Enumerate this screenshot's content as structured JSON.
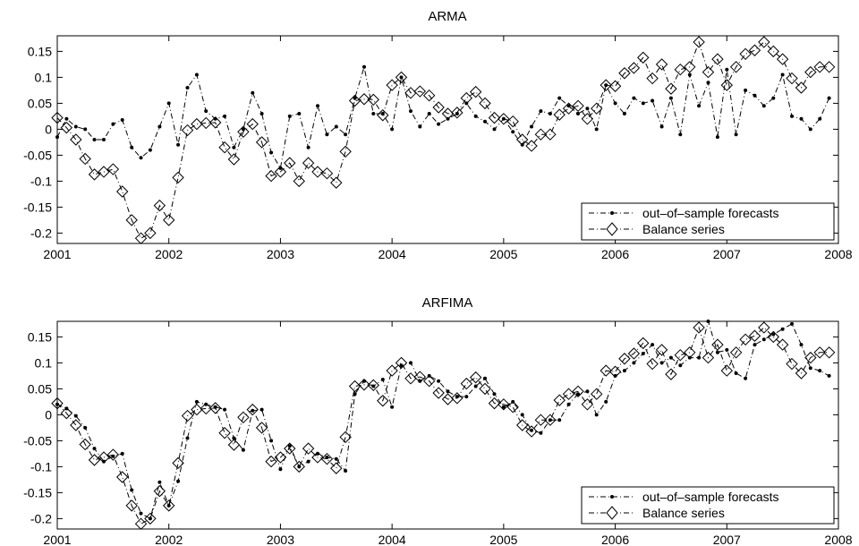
{
  "chart_data": [
    {
      "type": "line",
      "title": "ARMA",
      "xlabel": "",
      "ylabel": "",
      "xlim": [
        2001,
        2008
      ],
      "ylim": [
        -0.22,
        0.18
      ],
      "x_ticks": [
        "2001",
        "2002",
        "2003",
        "2004",
        "2005",
        "2006",
        "2007",
        "2008"
      ],
      "y_ticks": [
        "0.15",
        "0.1",
        "0.05",
        "0",
        "-0.05",
        "-0.1",
        "-0.15",
        "-0.2"
      ],
      "legend_position": "bottom-right",
      "grid": false,
      "series": [
        {
          "name": "out–of–sample forecasts",
          "style": "dot-marker dash-dot",
          "x": [
            2001.0,
            2001.083,
            2001.167,
            2001.25,
            2001.333,
            2001.417,
            2001.5,
            2001.583,
            2001.667,
            2001.75,
            2001.833,
            2001.917,
            2002.0,
            2002.083,
            2002.167,
            2002.25,
            2002.333,
            2002.417,
            2002.5,
            2002.583,
            2002.667,
            2002.75,
            2002.833,
            2002.917,
            2003.0,
            2003.083,
            2003.167,
            2003.25,
            2003.333,
            2003.417,
            2003.5,
            2003.583,
            2003.667,
            2003.75,
            2003.833,
            2003.917,
            2004.0,
            2004.083,
            2004.167,
            2004.25,
            2004.333,
            2004.417,
            2004.5,
            2004.583,
            2004.667,
            2004.75,
            2004.833,
            2004.917,
            2005.0,
            2005.083,
            2005.167,
            2005.25,
            2005.333,
            2005.417,
            2005.5,
            2005.583,
            2005.667,
            2005.75,
            2005.833,
            2005.917,
            2006.0,
            2006.083,
            2006.167,
            2006.25,
            2006.333,
            2006.417,
            2006.5,
            2006.583,
            2006.667,
            2006.75,
            2006.833,
            2006.917,
            2007.0,
            2007.083,
            2007.167,
            2007.25,
            2007.333,
            2007.417,
            2007.5,
            2007.583,
            2007.667,
            2007.75,
            2007.833,
            2007.917
          ],
          "y": [
            -0.015,
            0.02,
            0.005,
            0.0,
            -0.02,
            -0.02,
            0.01,
            0.018,
            -0.035,
            -0.055,
            -0.04,
            0.005,
            0.05,
            -0.03,
            0.08,
            0.105,
            0.035,
            0.02,
            0.025,
            -0.035,
            0.0,
            0.07,
            0.03,
            -0.045,
            -0.075,
            0.025,
            0.03,
            -0.035,
            0.045,
            -0.01,
            0.005,
            -0.01,
            0.06,
            0.12,
            0.03,
            0.03,
            0.0,
            0.1,
            0.035,
            0.005,
            0.03,
            0.01,
            0.02,
            0.03,
            0.05,
            0.025,
            0.015,
            0.0,
            0.02,
            -0.005,
            -0.03,
            0.005,
            0.035,
            0.03,
            0.06,
            0.045,
            0.03,
            0.04,
            0.0,
            0.085,
            0.05,
            0.03,
            0.06,
            0.05,
            0.055,
            0.005,
            0.06,
            -0.01,
            0.105,
            0.045,
            0.09,
            -0.015,
            0.115,
            -0.01,
            0.075,
            0.065,
            0.045,
            0.06,
            0.105,
            0.025,
            0.02,
            0.0,
            0.02,
            0.06
          ]
        },
        {
          "name": "Balance series",
          "style": "diamond-marker dash-dot",
          "x": [
            2001.0,
            2001.083,
            2001.167,
            2001.25,
            2001.333,
            2001.417,
            2001.5,
            2001.583,
            2001.667,
            2001.75,
            2001.833,
            2001.917,
            2002.0,
            2002.083,
            2002.167,
            2002.25,
            2002.333,
            2002.417,
            2002.5,
            2002.583,
            2002.667,
            2002.75,
            2002.833,
            2002.917,
            2003.0,
            2003.083,
            2003.167,
            2003.25,
            2003.333,
            2003.417,
            2003.5,
            2003.583,
            2003.667,
            2003.75,
            2003.833,
            2003.917,
            2004.0,
            2004.083,
            2004.167,
            2004.25,
            2004.333,
            2004.417,
            2004.5,
            2004.583,
            2004.667,
            2004.75,
            2004.833,
            2004.917,
            2005.0,
            2005.083,
            2005.167,
            2005.25,
            2005.333,
            2005.417,
            2005.5,
            2005.583,
            2005.667,
            2005.75,
            2005.833,
            2005.917,
            2006.0,
            2006.083,
            2006.167,
            2006.25,
            2006.333,
            2006.417,
            2006.5,
            2006.583,
            2006.667,
            2006.75,
            2006.833,
            2006.917,
            2007.0,
            2007.083,
            2007.167,
            2007.25,
            2007.333,
            2007.417,
            2007.5,
            2007.583,
            2007.667,
            2007.75,
            2007.833,
            2007.917
          ],
          "y": [
            0.022,
            0.003,
            -0.02,
            -0.057,
            -0.087,
            -0.082,
            -0.077,
            -0.12,
            -0.175,
            -0.21,
            -0.2,
            -0.147,
            -0.175,
            -0.093,
            -0.002,
            0.01,
            0.012,
            0.013,
            -0.035,
            -0.058,
            -0.005,
            0.01,
            -0.025,
            -0.09,
            -0.082,
            -0.065,
            -0.1,
            -0.065,
            -0.082,
            -0.085,
            -0.103,
            -0.043,
            0.055,
            0.058,
            0.057,
            0.027,
            0.085,
            0.1,
            0.07,
            0.073,
            0.065,
            0.042,
            0.03,
            0.032,
            0.06,
            0.072,
            0.05,
            0.022,
            0.02,
            0.015,
            -0.02,
            -0.032,
            -0.01,
            -0.01,
            0.028,
            0.04,
            0.045,
            0.02,
            0.04,
            0.085,
            0.083,
            0.108,
            0.118,
            0.138,
            0.098,
            0.125,
            0.078,
            0.115,
            0.12,
            0.168,
            0.11,
            0.135,
            0.085,
            0.12,
            0.145,
            0.152,
            0.168,
            0.15,
            0.135,
            0.098,
            0.08,
            0.11,
            0.12,
            0.12
          ]
        }
      ]
    },
    {
      "type": "line",
      "title": "ARFIMA",
      "xlabel": "",
      "ylabel": "",
      "xlim": [
        2001,
        2008
      ],
      "ylim": [
        -0.22,
        0.18
      ],
      "x_ticks": [
        "2001",
        "2002",
        "2003",
        "2004",
        "2005",
        "2006",
        "2007",
        "2008"
      ],
      "y_ticks": [
        "0.15",
        "0.1",
        "0.05",
        "0",
        "-0.05",
        "-0.1",
        "-0.15",
        "-0.2"
      ],
      "legend_position": "bottom-right",
      "grid": false,
      "series": [
        {
          "name": "out–of–sample forecasts",
          "style": "dot-marker dash-dot",
          "x": [
            2001.0,
            2001.083,
            2001.167,
            2001.25,
            2001.333,
            2001.417,
            2001.5,
            2001.583,
            2001.667,
            2001.75,
            2001.833,
            2001.917,
            2002.0,
            2002.083,
            2002.167,
            2002.25,
            2002.333,
            2002.417,
            2002.5,
            2002.583,
            2002.667,
            2002.75,
            2002.833,
            2002.917,
            2003.0,
            2003.083,
            2003.167,
            2003.25,
            2003.333,
            2003.417,
            2003.5,
            2003.583,
            2003.667,
            2003.75,
            2003.833,
            2003.917,
            2004.0,
            2004.083,
            2004.167,
            2004.25,
            2004.333,
            2004.417,
            2004.5,
            2004.583,
            2004.667,
            2004.75,
            2004.833,
            2004.917,
            2005.0,
            2005.083,
            2005.167,
            2005.25,
            2005.333,
            2005.417,
            2005.5,
            2005.583,
            2005.667,
            2005.75,
            2005.833,
            2005.917,
            2006.0,
            2006.083,
            2006.167,
            2006.25,
            2006.333,
            2006.417,
            2006.5,
            2006.583,
            2006.667,
            2006.75,
            2006.833,
            2006.917,
            2007.0,
            2007.083,
            2007.167,
            2007.25,
            2007.333,
            2007.417,
            2007.5,
            2007.583,
            2007.667,
            2007.75,
            2007.833,
            2007.917
          ],
          "y": [
            0.02,
            0.012,
            -0.002,
            -0.025,
            -0.065,
            -0.09,
            -0.08,
            -0.075,
            -0.145,
            -0.19,
            -0.2,
            -0.13,
            -0.175,
            -0.128,
            -0.045,
            0.025,
            0.02,
            0.015,
            0.01,
            -0.045,
            -0.068,
            0.008,
            0.01,
            -0.05,
            -0.105,
            -0.06,
            -0.1,
            -0.09,
            -0.075,
            -0.082,
            -0.085,
            -0.108,
            0.04,
            0.065,
            0.055,
            0.068,
            0.015,
            0.095,
            0.1,
            0.065,
            0.075,
            0.065,
            0.045,
            0.035,
            0.035,
            0.055,
            0.07,
            0.04,
            0.015,
            0.025,
            0.0,
            -0.03,
            -0.035,
            -0.01,
            -0.01,
            0.02,
            0.04,
            0.045,
            0.0,
            0.025,
            0.075,
            0.085,
            0.1,
            0.118,
            0.135,
            0.1,
            0.11,
            0.095,
            0.11,
            0.11,
            0.18,
            0.12,
            0.125,
            0.08,
            0.07,
            0.135,
            0.145,
            0.155,
            0.165,
            0.175,
            0.135,
            0.09,
            0.085,
            0.075
          ]
        },
        {
          "name": "Balance series",
          "style": "diamond-marker dash-dot",
          "x": [
            2001.0,
            2001.083,
            2001.167,
            2001.25,
            2001.333,
            2001.417,
            2001.5,
            2001.583,
            2001.667,
            2001.75,
            2001.833,
            2001.917,
            2002.0,
            2002.083,
            2002.167,
            2002.25,
            2002.333,
            2002.417,
            2002.5,
            2002.583,
            2002.667,
            2002.75,
            2002.833,
            2002.917,
            2003.0,
            2003.083,
            2003.167,
            2003.25,
            2003.333,
            2003.417,
            2003.5,
            2003.583,
            2003.667,
            2003.75,
            2003.833,
            2003.917,
            2004.0,
            2004.083,
            2004.167,
            2004.25,
            2004.333,
            2004.417,
            2004.5,
            2004.583,
            2004.667,
            2004.75,
            2004.833,
            2004.917,
            2005.0,
            2005.083,
            2005.167,
            2005.25,
            2005.333,
            2005.417,
            2005.5,
            2005.583,
            2005.667,
            2005.75,
            2005.833,
            2005.917,
            2006.0,
            2006.083,
            2006.167,
            2006.25,
            2006.333,
            2006.417,
            2006.5,
            2006.583,
            2006.667,
            2006.75,
            2006.833,
            2006.917,
            2007.0,
            2007.083,
            2007.167,
            2007.25,
            2007.333,
            2007.417,
            2007.5,
            2007.583,
            2007.667,
            2007.75,
            2007.833,
            2007.917
          ],
          "y": [
            0.022,
            0.003,
            -0.02,
            -0.057,
            -0.087,
            -0.082,
            -0.077,
            -0.12,
            -0.175,
            -0.21,
            -0.2,
            -0.147,
            -0.175,
            -0.093,
            -0.002,
            0.01,
            0.012,
            0.013,
            -0.035,
            -0.058,
            -0.005,
            0.01,
            -0.025,
            -0.09,
            -0.082,
            -0.065,
            -0.1,
            -0.065,
            -0.082,
            -0.085,
            -0.103,
            -0.043,
            0.055,
            0.058,
            0.057,
            0.027,
            0.085,
            0.1,
            0.07,
            0.073,
            0.065,
            0.042,
            0.03,
            0.032,
            0.06,
            0.072,
            0.05,
            0.022,
            0.02,
            0.015,
            -0.02,
            -0.032,
            -0.01,
            -0.01,
            0.028,
            0.04,
            0.045,
            0.02,
            0.04,
            0.085,
            0.083,
            0.108,
            0.118,
            0.138,
            0.098,
            0.125,
            0.078,
            0.115,
            0.12,
            0.168,
            0.11,
            0.135,
            0.085,
            0.12,
            0.145,
            0.152,
            0.168,
            0.15,
            0.135,
            0.098,
            0.08,
            0.11,
            0.12,
            0.12
          ]
        }
      ]
    }
  ]
}
